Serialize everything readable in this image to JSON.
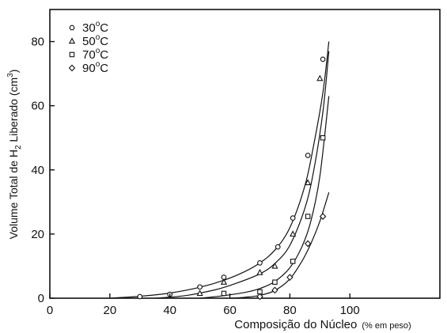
{
  "chart_data": {
    "type": "scatter",
    "xlabel": {
      "main": "Composição do Núcleo",
      "unit": "(% em peso)"
    },
    "ylabel": {
      "pre": "Volume Total de H",
      "sub": "2",
      "mid": " Liberado (cm",
      "sup": "3",
      "post": ")"
    },
    "xlim": [
      0,
      130
    ],
    "ylim": [
      0,
      90
    ],
    "xticks": [
      0,
      20,
      40,
      60,
      80,
      100
    ],
    "yticks": [
      0,
      20,
      40,
      60,
      80
    ],
    "grid": false,
    "legend_position": "top-left",
    "series": [
      {
        "label_num": "30",
        "label_sup": "o",
        "label_unit": "C",
        "marker": "circle",
        "x": [
          30,
          40,
          50,
          58,
          70,
          76,
          81,
          86,
          91
        ],
        "y": [
          0.5,
          1.2,
          3.5,
          6.5,
          11,
          16,
          25,
          44.5,
          74.5
        ],
        "curve": [
          [
            20,
            0
          ],
          [
            30,
            0.6
          ],
          [
            40,
            1.6
          ],
          [
            50,
            3.4
          ],
          [
            58,
            5.6
          ],
          [
            65,
            8.3
          ],
          [
            70,
            11
          ],
          [
            75,
            15
          ],
          [
            80,
            22
          ],
          [
            85,
            35
          ],
          [
            88,
            48
          ],
          [
            91,
            64
          ],
          [
            93,
            80
          ]
        ]
      },
      {
        "label_num": "50",
        "label_sup": "o",
        "label_unit": "C",
        "marker": "triangle",
        "x": [
          50,
          58,
          70,
          75,
          81,
          86,
          90
        ],
        "y": [
          1.5,
          5,
          8,
          10,
          20,
          36,
          68.5
        ],
        "curve": [
          [
            35,
            0
          ],
          [
            45,
            0.8
          ],
          [
            55,
            2.6
          ],
          [
            62,
            4.6
          ],
          [
            70,
            7.6
          ],
          [
            75,
            10.8
          ],
          [
            80,
            16.5
          ],
          [
            85,
            28
          ],
          [
            88,
            40
          ],
          [
            91,
            58
          ],
          [
            93,
            77
          ]
        ]
      },
      {
        "label_num": "70",
        "label_sup": "o",
        "label_unit": "C",
        "marker": "square",
        "x": [
          58,
          70,
          75,
          81,
          86,
          91
        ],
        "y": [
          1.5,
          2,
          5,
          11.5,
          25.5,
          50
        ],
        "curve": [
          [
            50,
            0
          ],
          [
            58,
            0.8
          ],
          [
            65,
            1.8
          ],
          [
            70,
            3
          ],
          [
            75,
            5.2
          ],
          [
            80,
            9.5
          ],
          [
            84,
            16
          ],
          [
            87,
            24
          ],
          [
            90,
            38
          ],
          [
            93,
            63
          ]
        ]
      },
      {
        "label_num": "90",
        "label_sup": "o",
        "label_unit": "C",
        "marker": "diamond",
        "x": [
          70,
          75,
          80,
          86,
          91
        ],
        "y": [
          0.5,
          2.5,
          6.5,
          17,
          25.5
        ],
        "curve": [
          [
            60,
            0
          ],
          [
            65,
            0.3
          ],
          [
            70,
            0.9
          ],
          [
            75,
            2.4
          ],
          [
            80,
            6
          ],
          [
            84,
            11.5
          ],
          [
            87,
            17
          ],
          [
            90,
            24
          ],
          [
            93,
            33
          ]
        ]
      }
    ]
  }
}
